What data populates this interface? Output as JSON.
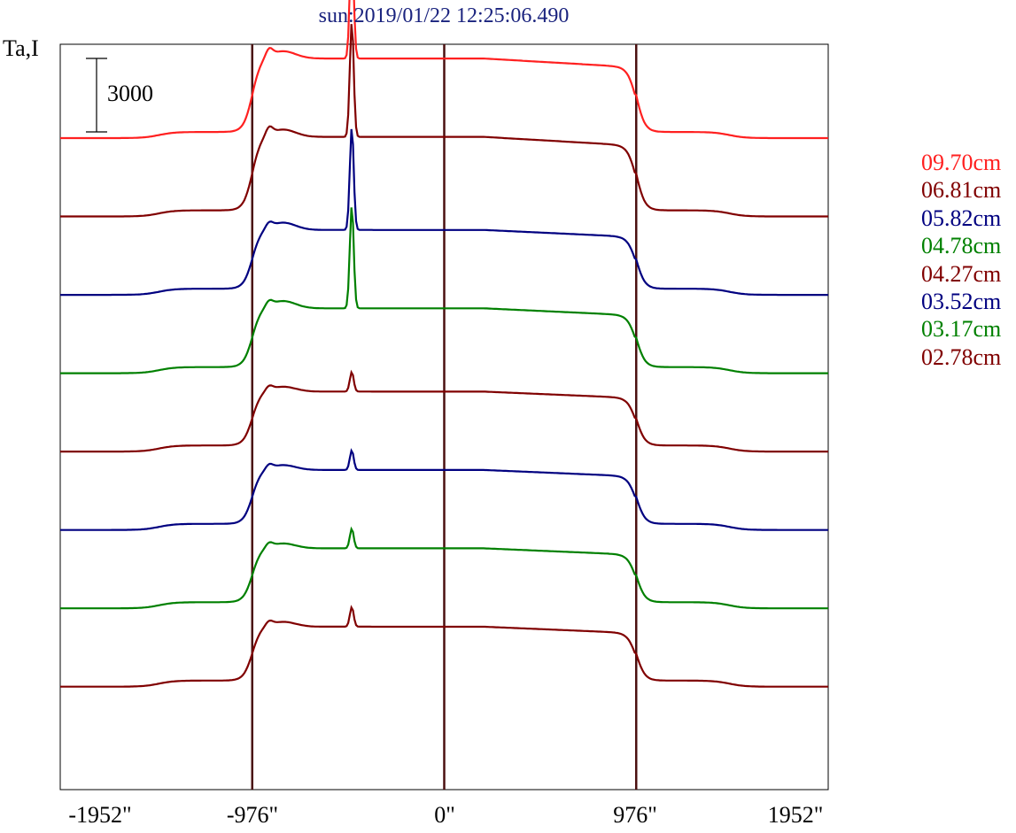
{
  "title": "sun:2019/01/22 12:25:06.490",
  "ylabel": "Ta,I",
  "chart_data": {
    "type": "line",
    "title": "sun:2019/01/22 12:25:06.490",
    "ylabel": "Ta,I",
    "xlabel": "",
    "xlim": [
      -1952,
      1952
    ],
    "x_ticks": [
      "-1952\"",
      "-976\"",
      "0\"",
      "976\"",
      "1952\""
    ],
    "x_tick_values": [
      -1952,
      -976,
      0,
      976,
      1952
    ],
    "vertical_lines": [
      -976,
      0,
      976
    ],
    "scale_bar": {
      "label": "3000",
      "value": 3000
    },
    "legend_position": "right",
    "series": [
      {
        "name": "09.70cm",
        "color": "#ff2020",
        "baseline": 24000,
        "profile": "sun_large"
      },
      {
        "name": "06.81cm",
        "color": "#800000",
        "baseline": 20800,
        "profile": "sun_large"
      },
      {
        "name": "05.82cm",
        "color": "#000080",
        "baseline": 17600,
        "profile": "sun_medium"
      },
      {
        "name": "04.78cm",
        "color": "#008000",
        "baseline": 14400,
        "profile": "sun_medium"
      },
      {
        "name": "04.27cm",
        "color": "#800000",
        "baseline": 11200,
        "profile": "sun_small"
      },
      {
        "name": "03.52cm",
        "color": "#000080",
        "baseline": 8000,
        "profile": "sun_small"
      },
      {
        "name": "03.17cm",
        "color": "#008000",
        "baseline": 4800,
        "profile": "sun_small"
      },
      {
        "name": "02.78cm",
        "color": "#800000",
        "baseline": 1600,
        "profile": "sun_small"
      }
    ]
  }
}
